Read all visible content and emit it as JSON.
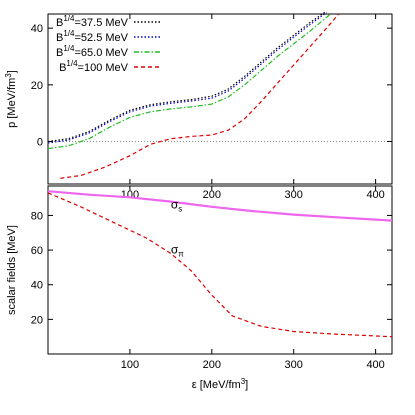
{
  "chart_data": [
    {
      "type": "line",
      "xlabel": "",
      "ylabel": "p [MeV/fm3]",
      "xlim": [
        0,
        420
      ],
      "ylim": [
        -15,
        45
      ],
      "xticks": [
        "100",
        "200",
        "300",
        "400"
      ],
      "yticks": [
        "0",
        "20",
        "40"
      ],
      "reference_line": {
        "y": 0,
        "style": "dotted"
      },
      "legend_position": "top-left",
      "series": [
        {
          "name": "B1/4=37.5 MeV",
          "color": "#000000",
          "dash": "dotted",
          "x": [
            0,
            25,
            50,
            75,
            100,
            125,
            150,
            175,
            200,
            220,
            240,
            260,
            280,
            300,
            320,
            340
          ],
          "y": [
            0.0,
            1.0,
            3.5,
            7.5,
            11.0,
            13.0,
            14.0,
            14.8,
            16.0,
            18.5,
            23.0,
            28.0,
            33.0,
            37.5,
            42.0,
            46.0
          ]
        },
        {
          "name": "B1/4=52.5 MeV",
          "color": "#0000cc",
          "dash": "dotted",
          "x": [
            0,
            25,
            50,
            75,
            100,
            125,
            150,
            175,
            200,
            220,
            240,
            260,
            280,
            300,
            320,
            340
          ],
          "y": [
            -0.5,
            0.5,
            3.0,
            7.0,
            10.5,
            12.5,
            13.5,
            14.3,
            15.3,
            17.8,
            22.3,
            27.3,
            32.3,
            36.8,
            41.3,
            45.5
          ]
        },
        {
          "name": "B1/4=65.0 MeV",
          "color": "#22bb22",
          "dash": "dashdot",
          "x": [
            0,
            25,
            50,
            75,
            100,
            125,
            150,
            175,
            200,
            220,
            240,
            260,
            280,
            300,
            320,
            345
          ],
          "y": [
            -2.5,
            -1.5,
            1.0,
            5.0,
            8.5,
            10.5,
            11.5,
            12.2,
            13.2,
            15.7,
            20.0,
            25.0,
            30.0,
            34.5,
            39.0,
            45.0
          ]
        },
        {
          "name": "B1/4=100 MeV",
          "color": "#dd0000",
          "dash": "dashed",
          "x": [
            15,
            40,
            70,
            100,
            125,
            150,
            175,
            200,
            220,
            240,
            260,
            280,
            300,
            320,
            340,
            355
          ],
          "y": [
            -13.0,
            -12.0,
            -9.0,
            -5.0,
            -1.0,
            1.0,
            1.8,
            2.3,
            4.0,
            8.0,
            14.0,
            20.5,
            27.0,
            33.5,
            40.0,
            45.0
          ]
        }
      ]
    },
    {
      "type": "line",
      "xlabel": "ε [MeV/fm3]",
      "ylabel": "scalar fields [MeV]",
      "xlim": [
        0,
        420
      ],
      "ylim": [
        0,
        97
      ],
      "xticks": [
        "100",
        "200",
        "300",
        "400"
      ],
      "yticks": [
        "20",
        "40",
        "60",
        "80"
      ],
      "annotations": [
        {
          "text": "σ",
          "sub": "s",
          "x": 150,
          "y": 84
        },
        {
          "text": "σ",
          "sub": "π",
          "x": 150,
          "y": 58
        }
      ],
      "series": [
        {
          "name": "",
          "color": "#ee66ee",
          "dash": "solid",
          "x": [
            0,
            50,
            100,
            150,
            200,
            250,
            300,
            350,
            420
          ],
          "y": [
            94,
            92,
            90.5,
            88,
            85,
            82.5,
            80.5,
            79,
            77
          ]
        },
        {
          "name": "",
          "color": "#dd0000",
          "dash": "dashed",
          "x": [
            0,
            40,
            80,
            120,
            150,
            175,
            200,
            225,
            260,
            300,
            350,
            420
          ],
          "y": [
            93,
            85,
            76,
            67,
            58,
            48,
            34,
            22,
            16,
            13,
            11.5,
            10
          ]
        }
      ]
    }
  ]
}
